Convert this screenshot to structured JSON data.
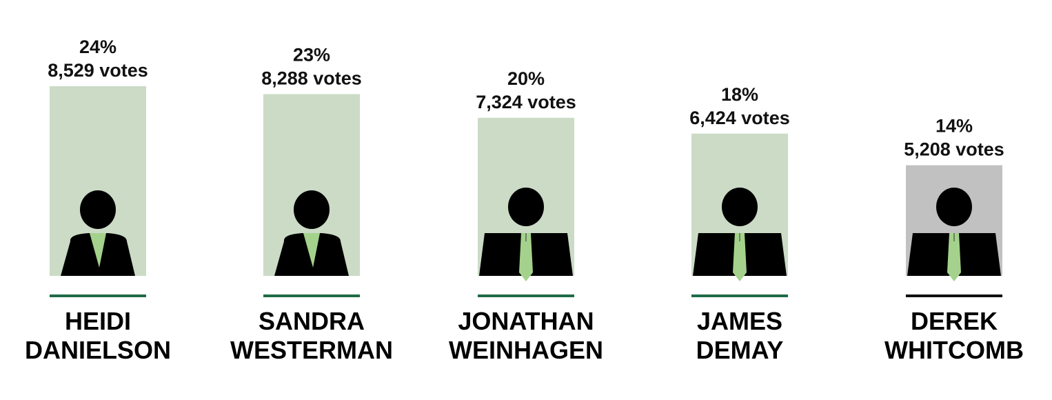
{
  "chart_data": {
    "type": "bar",
    "title": "",
    "xlabel": "",
    "ylabel": "",
    "ylim": [
      0,
      24
    ],
    "grid": false,
    "legend": "none",
    "categories": [
      [
        "HEIDI",
        "DANIELSON"
      ],
      [
        "SANDRA",
        "WESTERMAN"
      ],
      [
        "JONATHAN",
        "WEINHAGEN"
      ],
      [
        "JAMES",
        "DEMAY"
      ],
      [
        "DEREK",
        "WHITCOMB"
      ]
    ],
    "values": [
      24,
      23,
      20,
      18,
      14
    ],
    "percent_labels": [
      "24%",
      "23%",
      "20%",
      "18%",
      "14%"
    ],
    "vote_labels": [
      "8,529 votes",
      "8,288 votes",
      "7,324 votes",
      "6,424 votes",
      "5,208 votes"
    ],
    "figures": [
      "woman",
      "woman",
      "man",
      "man",
      "man"
    ],
    "bar_colors": [
      "#cbdbc6",
      "#cbdbc6",
      "#cbdbc6",
      "#cbdbc6",
      "#c1c1c1"
    ],
    "underline_colors": [
      "#1f6b46",
      "#1f6b46",
      "#1f6b46",
      "#1f6b46",
      "#111111"
    ],
    "figure_color": "#000000",
    "tie_color": "#a4d28c"
  }
}
